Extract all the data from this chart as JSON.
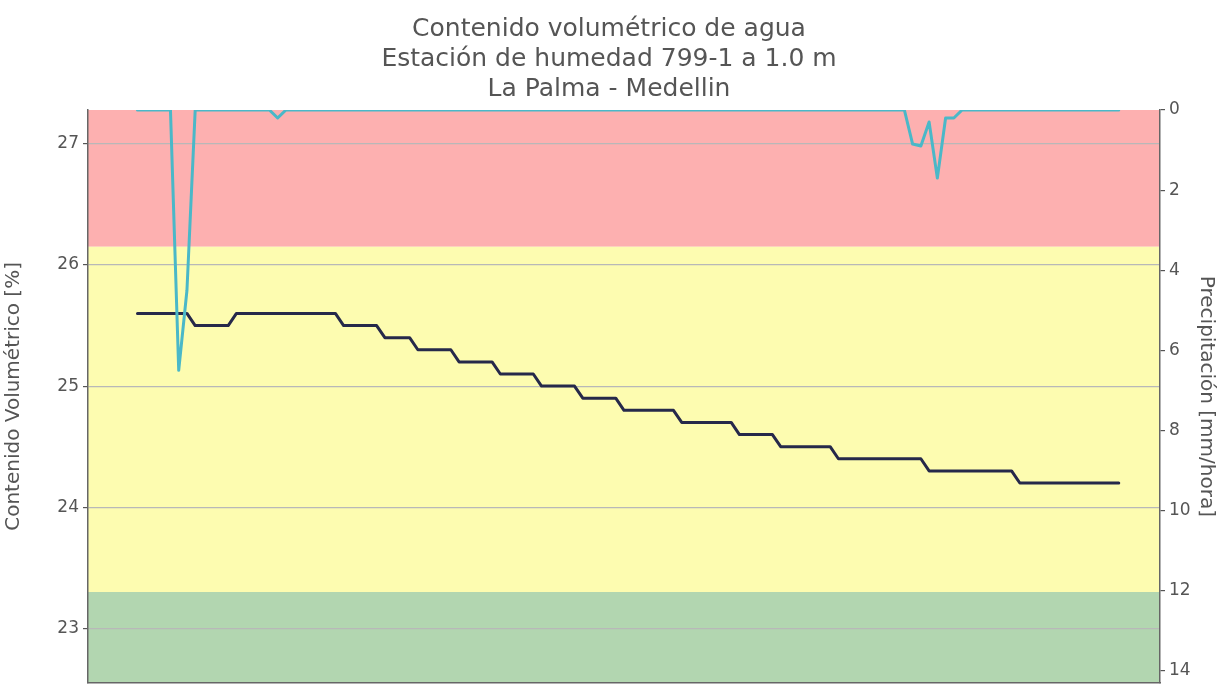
{
  "chart_data": {
    "type": "line",
    "title": "Contenido volumétrico de agua",
    "subtitle": "Estación de humedad 799-1 a 1.0 m\nLa Palma - Medellin",
    "ylabel": "Contenido Volumétrico [%]",
    "y2label": "Precipitación [mm/hora]",
    "categories": [
      null,
      null,
      null,
      null,
      null,
      null,
      null,
      null,
      null,
      null,
      null,
      null,
      null,
      null,
      null,
      null,
      null,
      null,
      null,
      null,
      null,
      null,
      null,
      null,
      null,
      null,
      null,
      null,
      null,
      null,
      null,
      null,
      null,
      null,
      null,
      null,
      null,
      null,
      null,
      null,
      null,
      null,
      null,
      null,
      null,
      null,
      null,
      null,
      null,
      null,
      null,
      null,
      null,
      null,
      null,
      null,
      null,
      null,
      null,
      null,
      null,
      null,
      null,
      null,
      null,
      null,
      null,
      null,
      null,
      null,
      null,
      null,
      null,
      null,
      null,
      null,
      null,
      null,
      null,
      null,
      null,
      null,
      null,
      null,
      null,
      null,
      null,
      null,
      null,
      null,
      null,
      null,
      null,
      null,
      null,
      null,
      null,
      null,
      null,
      null,
      null,
      null,
      null,
      null,
      null,
      null,
      null,
      null,
      null,
      null,
      null,
      null,
      null,
      null,
      null,
      null,
      null,
      null,
      null,
      null,
      null,
      null,
      null,
      null,
      null,
      null,
      null,
      null,
      null,
      null,
      null
    ],
    "ylim": [
      22.55,
      27.28
    ],
    "yticks": [
      23,
      24,
      25,
      26,
      27
    ],
    "y2lim": [
      14.3,
      0
    ],
    "y2ticks": [
      0,
      2,
      4,
      6,
      8,
      10,
      12,
      14
    ],
    "grid": "y",
    "bands": [
      {
        "axis": "y",
        "from": 26.15,
        "to": 27.28,
        "color": "#fdb0b0"
      },
      {
        "axis": "y",
        "from": 23.3,
        "to": 26.15,
        "color": "#fdfcb0"
      },
      {
        "axis": "y",
        "from": 22.55,
        "to": 23.3,
        "color": "#b2d6b0"
      }
    ],
    "series": [
      {
        "color": "#4ab8c8",
        "axis": "y2",
        "values": [
          null,
          null,
          null,
          null,
          null,
          null,
          0,
          0,
          0,
          0,
          0,
          6.5,
          4.5,
          0,
          0,
          0,
          0,
          0,
          0,
          0,
          0,
          0,
          0,
          0.2,
          0,
          0,
          0,
          0,
          0,
          0,
          0,
          0,
          0,
          0,
          0,
          0,
          0,
          0,
          0,
          0,
          0,
          0,
          0,
          0,
          0,
          0,
          0,
          0,
          0,
          0,
          0,
          0,
          0,
          0,
          0,
          0,
          0,
          0,
          0,
          0,
          0,
          0,
          0,
          0,
          0,
          0,
          0,
          0,
          0,
          0,
          0,
          0,
          0,
          0,
          0,
          0,
          0,
          0,
          0,
          0,
          0,
          0,
          0,
          0,
          0,
          0,
          0,
          0,
          0,
          0,
          0,
          0,
          0,
          0,
          0,
          0,
          0,
          0,
          0,
          0,
          0.85,
          0.9,
          0.3,
          1.7,
          0.2,
          0.2,
          0,
          0,
          0,
          0,
          0,
          0,
          0,
          0,
          0,
          0,
          0,
          0,
          0,
          0,
          0,
          0,
          0,
          0,
          0,
          0,
          null,
          null,
          null,
          null,
          null
        ]
      },
      {
        "color": "#26294a",
        "values": [
          null,
          null,
          null,
          null,
          null,
          null,
          25.6,
          25.6,
          25.6,
          25.6,
          25.6,
          25.6,
          25.6,
          25.5,
          25.5,
          25.5,
          25.5,
          25.5,
          25.6,
          25.6,
          25.6,
          25.6,
          25.6,
          25.6,
          25.6,
          25.6,
          25.6,
          25.6,
          25.6,
          25.6,
          25.6,
          25.5,
          25.5,
          25.5,
          25.5,
          25.5,
          25.4,
          25.4,
          25.4,
          25.4,
          25.3,
          25.3,
          25.3,
          25.3,
          25.3,
          25.2,
          25.2,
          25.2,
          25.2,
          25.2,
          25.1,
          25.1,
          25.1,
          25.1,
          25.1,
          25.0,
          25.0,
          25.0,
          25.0,
          25.0,
          24.9,
          24.9,
          24.9,
          24.9,
          24.9,
          24.8,
          24.8,
          24.8,
          24.8,
          24.8,
          24.8,
          24.8,
          24.7,
          24.7,
          24.7,
          24.7,
          24.7,
          24.7,
          24.7,
          24.6,
          24.6,
          24.6,
          24.6,
          24.6,
          24.5,
          24.5,
          24.5,
          24.5,
          24.5,
          24.5,
          24.5,
          24.4,
          24.4,
          24.4,
          24.4,
          24.4,
          24.4,
          24.4,
          24.4,
          24.4,
          24.4,
          24.4,
          24.3,
          24.3,
          24.3,
          24.3,
          24.3,
          24.3,
          24.3,
          24.3,
          24.3,
          24.3,
          24.3,
          24.2,
          24.2,
          24.2,
          24.2,
          24.2,
          24.2,
          24.2,
          24.2,
          24.2,
          24.2,
          24.2,
          24.2,
          24.2,
          null,
          null,
          null,
          null,
          null
        ]
      }
    ]
  }
}
